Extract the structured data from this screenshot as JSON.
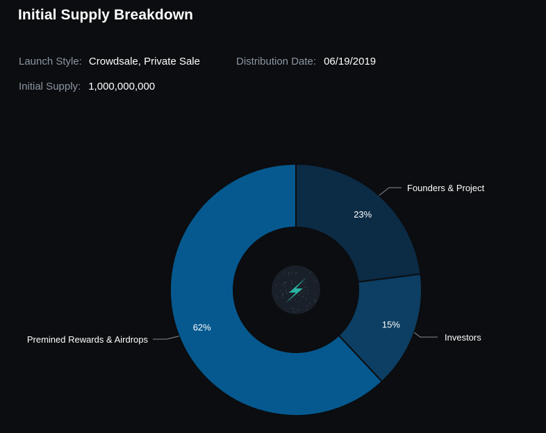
{
  "header": {
    "title": "Initial Supply Breakdown"
  },
  "meta": {
    "launch_style_label": "Launch Style:",
    "launch_style_value": "Crowdsale, Private Sale",
    "distribution_date_label": "Distribution Date:",
    "distribution_date_value": "06/19/2019",
    "initial_supply_label": "Initial Supply:",
    "initial_supply_value": "1,000,000,000"
  },
  "center_logo": {
    "icon": "lightning-bolt-logo-icon",
    "bolt_color": "#2bb3a0",
    "bg_color": "#1a2029"
  },
  "chart_data": {
    "type": "pie",
    "variant": "donut",
    "title": "",
    "start_angle_deg": 0,
    "direction": "clockwise",
    "slices": [
      {
        "name": "Founders & Project",
        "value": 23,
        "label": "23%",
        "color": "#0c2b45"
      },
      {
        "name": "Investors",
        "value": 15,
        "label": "15%",
        "color": "#0d3e63"
      },
      {
        "name": "Premined Rewards & Airdrops",
        "value": 62,
        "label": "62%",
        "color": "#05598f"
      }
    ],
    "leader_line_color": "#8a8f96"
  }
}
